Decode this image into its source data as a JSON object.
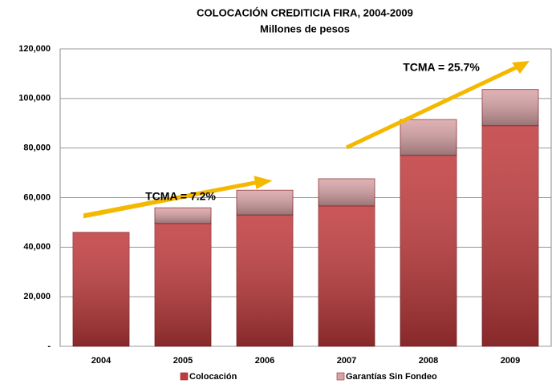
{
  "chart_data": {
    "type": "stacked_bar",
    "title": "COLOCACIÓN CREDITICIA FIRA, 2004-2009",
    "subtitle": "Millones de pesos",
    "categories": [
      "2004",
      "2005",
      "2006",
      "2007",
      "2008",
      "2009"
    ],
    "series": [
      {
        "name": "Colocación",
        "color": "#c0393b",
        "values": [
          46000,
          49500,
          53000,
          56600,
          77000,
          89000
        ]
      },
      {
        "name": "Garantías Sin Fondeo",
        "color": "#d9a3a6",
        "values": [
          0,
          6400,
          10000,
          11000,
          14500,
          14600
        ]
      }
    ],
    "ylim": [
      0,
      120000
    ],
    "yticks": [
      {
        "value": 0,
        "label": "-"
      },
      {
        "value": 20000,
        "label": "20,000"
      },
      {
        "value": 40000,
        "label": "40,000"
      },
      {
        "value": 60000,
        "label": "60,000"
      },
      {
        "value": 80000,
        "label": "80,000"
      },
      {
        "value": 100000,
        "label": "100,000"
      },
      {
        "value": 120000,
        "label": "120,000"
      }
    ],
    "grid": true,
    "annotations": [
      "TCMA = 7.2%",
      "TCMA = 25.7%"
    ]
  }
}
